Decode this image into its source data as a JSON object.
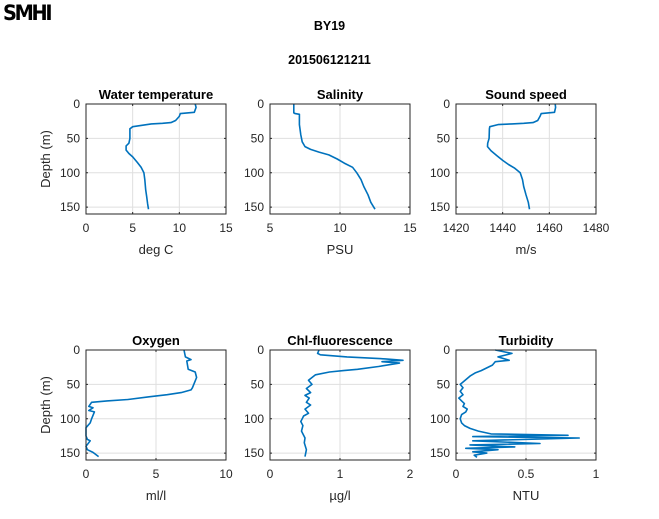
{
  "logo": "SMHI",
  "header": {
    "station": "BY19",
    "timestamp": "201506121211"
  },
  "colors": {
    "line": "#0072BD",
    "grid": "#DFDFDF",
    "axis": "#262626"
  },
  "chart_data": [
    {
      "type": "line",
      "title": "Water temperature",
      "xlabel": "deg C",
      "ylabel": "Depth (m)",
      "xlim": [
        0,
        15
      ],
      "ylim": [
        0,
        160
      ],
      "y_reversed": true,
      "grid": true,
      "xticks": [
        "0",
        "5",
        "10",
        "15"
      ],
      "yticks": [
        "0",
        "50",
        "100",
        "150"
      ],
      "series": [
        {
          "name": "Water temperature",
          "x": [
            11.7,
            11.8,
            11.6,
            10.1,
            10.0,
            9.6,
            9.1,
            8.2,
            7.0,
            6.0,
            5.0,
            4.7,
            4.7,
            4.6,
            4.3,
            4.3,
            4.6,
            5.0,
            5.5,
            5.9,
            6.2,
            6.3,
            6.4,
            6.5,
            6.6,
            6.7
          ],
          "y": [
            0,
            5,
            12,
            14,
            18,
            24,
            27,
            28,
            29,
            31,
            33,
            36,
            50,
            57,
            61,
            67,
            72,
            77,
            85,
            92,
            100,
            110,
            125,
            135,
            145,
            153
          ]
        }
      ]
    },
    {
      "type": "line",
      "title": "Salinity",
      "xlabel": "PSU",
      "ylabel": "",
      "xlim": [
        5,
        15
      ],
      "ylim": [
        0,
        160
      ],
      "y_reversed": true,
      "grid": true,
      "xticks": [
        "5",
        "10",
        "15"
      ],
      "yticks": [
        "0",
        "50",
        "100",
        "150"
      ],
      "series": [
        {
          "name": "Salinity",
          "x": [
            6.7,
            6.7,
            6.8,
            7.1,
            7.1,
            7.2,
            7.3,
            7.5,
            7.9,
            8.5,
            9.2,
            9.8,
            10.3,
            10.9,
            11.2,
            11.5,
            11.7,
            12.0,
            12.2,
            12.5
          ],
          "y": [
            0,
            13,
            14,
            15,
            30,
            45,
            55,
            62,
            66,
            70,
            74,
            80,
            86,
            92,
            100,
            110,
            120,
            132,
            143,
            153
          ]
        }
      ]
    },
    {
      "type": "line",
      "title": "Sound speed",
      "xlabel": "m/s",
      "ylabel": "",
      "xlim": [
        1420,
        1480
      ],
      "ylim": [
        0,
        160
      ],
      "y_reversed": true,
      "grid": true,
      "xticks": [
        "1420",
        "1440",
        "1460",
        "1480"
      ],
      "yticks": [
        "0",
        "50",
        "100",
        "150"
      ],
      "series": [
        {
          "name": "Sound speed",
          "x": [
            1462.5,
            1462.7,
            1462.2,
            1456.5,
            1456.0,
            1455.0,
            1453.0,
            1449.0,
            1444.0,
            1438.0,
            1434.5,
            1434.3,
            1434.2,
            1433.6,
            1433.5,
            1435.0,
            1437.5,
            1440.0,
            1442.5,
            1445.0,
            1447.5,
            1448.5,
            1449.0,
            1450.0,
            1451.0,
            1451.5
          ],
          "y": [
            0,
            5,
            12,
            14,
            18,
            24,
            27,
            28,
            29,
            30,
            33,
            36,
            50,
            57,
            62,
            68,
            75,
            82,
            88,
            93,
            100,
            110,
            120,
            132,
            143,
            153
          ]
        }
      ]
    },
    {
      "type": "line",
      "title": "Oxygen",
      "xlabel": "ml/l",
      "ylabel": "Depth (m)",
      "xlim": [
        0,
        10
      ],
      "ylim": [
        0,
        160
      ],
      "y_reversed": true,
      "grid": true,
      "xticks": [
        "0",
        "5",
        "10"
      ],
      "yticks": [
        "0",
        "50",
        "100",
        "150"
      ],
      "series": [
        {
          "name": "Oxygen",
          "x": [
            7.0,
            7.1,
            7.5,
            7.2,
            7.3,
            7.8,
            7.9,
            7.6,
            7.5,
            6.8,
            5.8,
            4.5,
            3.0,
            1.5,
            0.4,
            0.2,
            0.5,
            0.2,
            0.6,
            0.4,
            0.3,
            0.0,
            0.0,
            0.1,
            0.3,
            0.0,
            0.1,
            0.5,
            0.9
          ],
          "y": [
            0,
            10,
            14,
            16,
            28,
            32,
            40,
            55,
            58,
            62,
            65,
            68,
            72,
            74,
            76,
            82,
            84,
            88,
            90,
            100,
            106,
            113,
            125,
            130,
            132,
            140,
            145,
            149,
            155
          ]
        }
      ]
    },
    {
      "type": "line",
      "title": "Chl-fluorescence",
      "xlabel": "µg/l",
      "ylabel": "",
      "xlim": [
        0,
        2
      ],
      "ylim": [
        0,
        160
      ],
      "y_reversed": true,
      "grid": true,
      "xticks": [
        "0",
        "1",
        "2"
      ],
      "yticks": [
        "0",
        "50",
        "100",
        "150"
      ],
      "series": [
        {
          "name": "Chl-fluorescence",
          "x": [
            0.7,
            0.68,
            0.72,
            1.1,
            1.65,
            1.9,
            1.6,
            1.85,
            1.55,
            1.25,
            1.05,
            0.85,
            0.65,
            0.55,
            0.6,
            0.52,
            0.58,
            0.5,
            0.56,
            0.52,
            0.58,
            0.5,
            0.55,
            0.48,
            0.46,
            0.44,
            0.47,
            0.45,
            0.5,
            0.49,
            0.52,
            0.5
          ],
          "y": [
            0,
            5,
            7,
            10,
            13,
            15,
            17,
            19,
            24,
            28,
            30,
            32,
            36,
            44,
            50,
            56,
            62,
            66,
            70,
            76,
            80,
            86,
            92,
            96,
            100,
            104,
            110,
            118,
            128,
            135,
            145,
            155
          ]
        }
      ]
    },
    {
      "type": "line",
      "title": "Turbidity",
      "xlabel": "NTU",
      "ylabel": "",
      "xlim": [
        0,
        1
      ],
      "ylim": [
        0,
        160
      ],
      "y_reversed": true,
      "grid": true,
      "xticks": [
        "0",
        "0.5",
        "1"
      ],
      "yticks": [
        "0",
        "50",
        "100",
        "150"
      ],
      "series": [
        {
          "name": "Turbidity",
          "x": [
            0.28,
            0.4,
            0.3,
            0.38,
            0.28,
            0.26,
            0.22,
            0.18,
            0.14,
            0.1,
            0.06,
            0.03,
            0.05,
            0.03,
            0.05,
            0.02,
            0.04,
            0.06,
            0.05,
            0.08,
            0.07,
            0.04,
            0.03,
            0.04,
            0.06,
            0.1,
            0.16,
            0.25,
            0.8,
            0.12,
            0.88,
            0.12,
            0.6,
            0.1,
            0.42,
            0.07,
            0.3,
            0.12,
            0.22,
            0.13,
            0.15
          ],
          "y": [
            0,
            5,
            10,
            15,
            17,
            22,
            26,
            30,
            33,
            38,
            45,
            50,
            55,
            60,
            65,
            70,
            74,
            78,
            82,
            86,
            90,
            94,
            100,
            106,
            110,
            114,
            118,
            122,
            124,
            126,
            128,
            132,
            136,
            138,
            141,
            143,
            145,
            148,
            150,
            153,
            156
          ]
        }
      ]
    }
  ]
}
